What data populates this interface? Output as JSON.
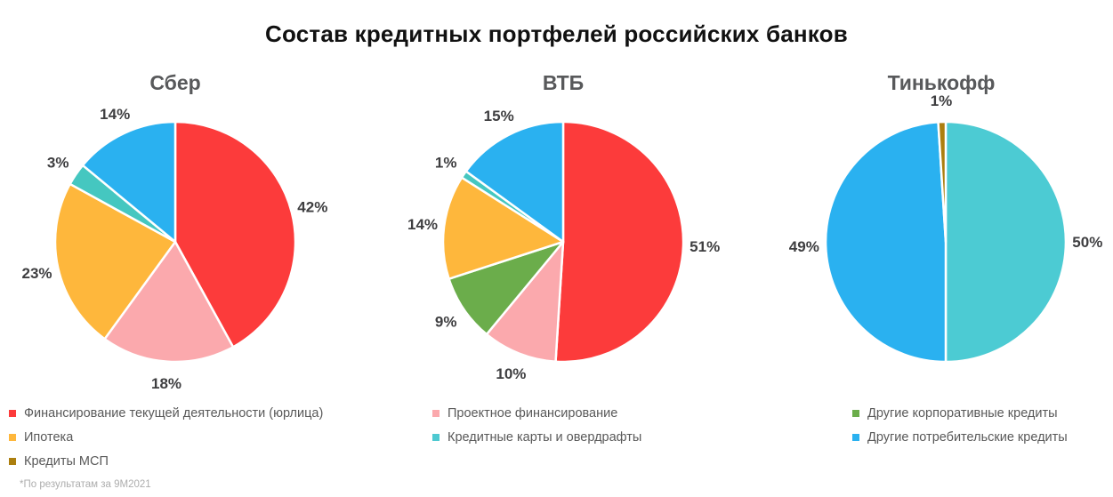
{
  "title": "Состав кредитных портфелей российских банков",
  "footnote": "*По результатам за 9М2021",
  "colors": {
    "current_activity_financing": "#FC3B3B",
    "project_financing": "#FBA9AD",
    "other_corporate": "#6BAD4B",
    "mortgage": "#FEB73C",
    "cards_overdrafts": "#4EC9D1",
    "other_consumer": "#2AB1F0",
    "sme": "#AC7F0F"
  },
  "legend": {
    "columns": [
      {
        "items": [
          {
            "label": "Финансирование текущей деятельности (юрлица)",
            "color": "#FC3B3B"
          },
          {
            "label": "Ипотека",
            "color": "#FEB73C"
          },
          {
            "label": "Кредиты МСП",
            "color": "#AC7F0F"
          }
        ]
      },
      {
        "items": [
          {
            "label": "Проектное финансирование",
            "color": "#FBA9AD"
          },
          {
            "label": "Кредитные карты и овердрафты",
            "color": "#4EC9D1"
          }
        ]
      },
      {
        "items": [
          {
            "label": "Другие корпоративные кредиты",
            "color": "#6BAD4B"
          },
          {
            "label": "Другие потребительские кредиты",
            "color": "#2AB1F0"
          }
        ]
      }
    ]
  },
  "chart_data": [
    {
      "type": "pie",
      "title": "Сбер",
      "unit": "%",
      "start_angle_deg": 0,
      "direction": "clockwise",
      "label_position": "outside",
      "slices": [
        {
          "label": "Финансирование текущей деятельности (юрлица)",
          "value": 42,
          "color": "#FC3B3B"
        },
        {
          "label": "Проектное финансирование",
          "value": 18,
          "color": "#FBA9AD"
        },
        {
          "label": "Ипотека",
          "value": 23,
          "color": "#FEB73C"
        },
        {
          "label": "Кредитные карты и овердрафты",
          "value": 3,
          "color": "#45C7C0"
        },
        {
          "label": "Другие потребительские кредиты",
          "value": 14,
          "color": "#2AB1F0"
        }
      ]
    },
    {
      "type": "pie",
      "title": "ВТБ",
      "unit": "%",
      "start_angle_deg": 0,
      "direction": "clockwise",
      "label_position": "outside",
      "slices": [
        {
          "label": "Финансирование текущей деятельности (юрлица)",
          "value": 51,
          "color": "#FC3B3B"
        },
        {
          "label": "Проектное финансирование",
          "value": 10,
          "color": "#FBA9AD"
        },
        {
          "label": "Другие корпоративные кредиты",
          "value": 9,
          "color": "#6BAD4B"
        },
        {
          "label": "Ипотека",
          "value": 14,
          "color": "#FEB73C"
        },
        {
          "label": "Кредитные карты и овердрафты",
          "value": 1,
          "color": "#45C7C0"
        },
        {
          "label": "Другие потребительские кредиты",
          "value": 15,
          "color": "#2AB1F0"
        }
      ]
    },
    {
      "type": "pie",
      "title": "Тинькофф",
      "unit": "%",
      "start_angle_deg": 0,
      "direction": "clockwise",
      "label_position": "outside",
      "slices": [
        {
          "label": "Кредитные карты и овердрафты",
          "value": 50,
          "color": "#4CCBD3"
        },
        {
          "label": "Другие потребительские кредиты",
          "value": 49,
          "color": "#2AB1F0"
        },
        {
          "label": "Кредиты МСП",
          "value": 1,
          "color": "#AC7F0F"
        }
      ]
    }
  ]
}
